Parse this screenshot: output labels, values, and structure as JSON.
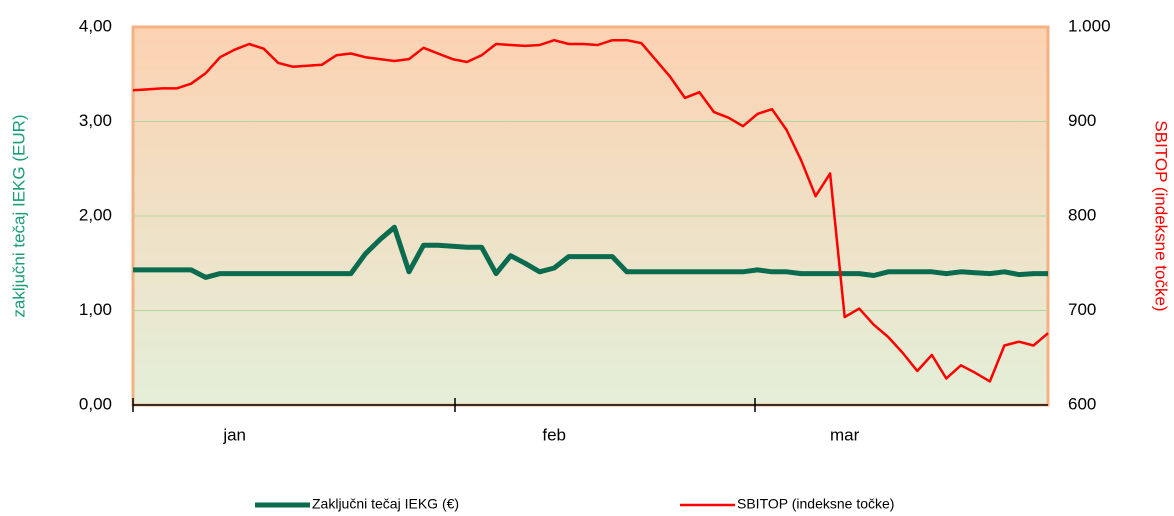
{
  "chart_data": {
    "type": "line",
    "categories": [
      null,
      null,
      null,
      null,
      null,
      null,
      null,
      "jan",
      null,
      null,
      null,
      null,
      null,
      null,
      null,
      null,
      null,
      null,
      null,
      null,
      null,
      null,
      null,
      null,
      null,
      null,
      null,
      null,
      null,
      "feb",
      null,
      null,
      null,
      null,
      null,
      null,
      null,
      null,
      null,
      null,
      null,
      null,
      null,
      null,
      null,
      null,
      null,
      null,
      null,
      "mar",
      null,
      null,
      null,
      null,
      null,
      null,
      null,
      null,
      null,
      null,
      null,
      null,
      null,
      null
    ],
    "y_label": "zaključni tečaj IEKG (EUR)",
    "y2_label": "SBITOP (indeksne točke)",
    "ylim": [
      0,
      4
    ],
    "yticks": [
      {
        "value": 0,
        "label": "0,00"
      },
      {
        "value": 1,
        "label": "1,00"
      },
      {
        "value": 2,
        "label": "2,00"
      },
      {
        "value": 3,
        "label": "3,00"
      },
      {
        "value": 4,
        "label": "4,00"
      }
    ],
    "y2lim": [
      600,
      1000
    ],
    "y2ticks": [
      600,
      700,
      800,
      900,
      {
        "value": 1000,
        "label": "1.000"
      }
    ],
    "grid": true,
    "legend": "bottom",
    "series": [
      {
        "name": "Zaključni tečaj IEKG (€)",
        "color": "#0b6b4e",
        "values": [
          1.43,
          1.43,
          1.43,
          1.43,
          1.43,
          1.35,
          1.39,
          1.39,
          1.39,
          1.39,
          1.39,
          1.39,
          1.39,
          1.39,
          1.39,
          1.39,
          1.6,
          1.75,
          1.88,
          1.41,
          1.69,
          1.69,
          1.68,
          1.67,
          1.67,
          1.39,
          1.58,
          1.5,
          1.41,
          1.45,
          1.57,
          1.57,
          1.57,
          1.57,
          1.41,
          1.41,
          1.41,
          1.41,
          1.41,
          1.41,
          1.41,
          1.41,
          1.41,
          1.43,
          1.41,
          1.41,
          1.39,
          1.39,
          1.39,
          1.39,
          1.39,
          1.37,
          1.41,
          1.41,
          1.41,
          1.41,
          1.39,
          1.41,
          1.4,
          1.39,
          1.41,
          1.38,
          1.39,
          1.39
        ]
      },
      {
        "name": "SBITOP (indeksne točke)",
        "color": "#ff0000",
        "axis": "y2",
        "values": [
          933,
          934,
          935,
          935,
          940,
          951,
          968,
          976,
          982,
          977,
          962,
          958,
          959,
          960,
          970,
          972,
          968,
          966,
          964,
          966,
          978,
          972,
          966,
          963,
          970,
          982,
          981,
          980,
          981,
          986,
          982,
          982,
          981,
          986,
          986,
          983,
          965,
          947,
          925,
          931,
          910,
          904,
          895,
          908,
          913,
          891,
          859,
          821,
          845,
          693,
          702,
          685,
          672,
          655,
          636,
          653,
          628,
          642,
          634,
          625,
          663,
          667,
          663,
          676
        ]
      }
    ]
  }
}
